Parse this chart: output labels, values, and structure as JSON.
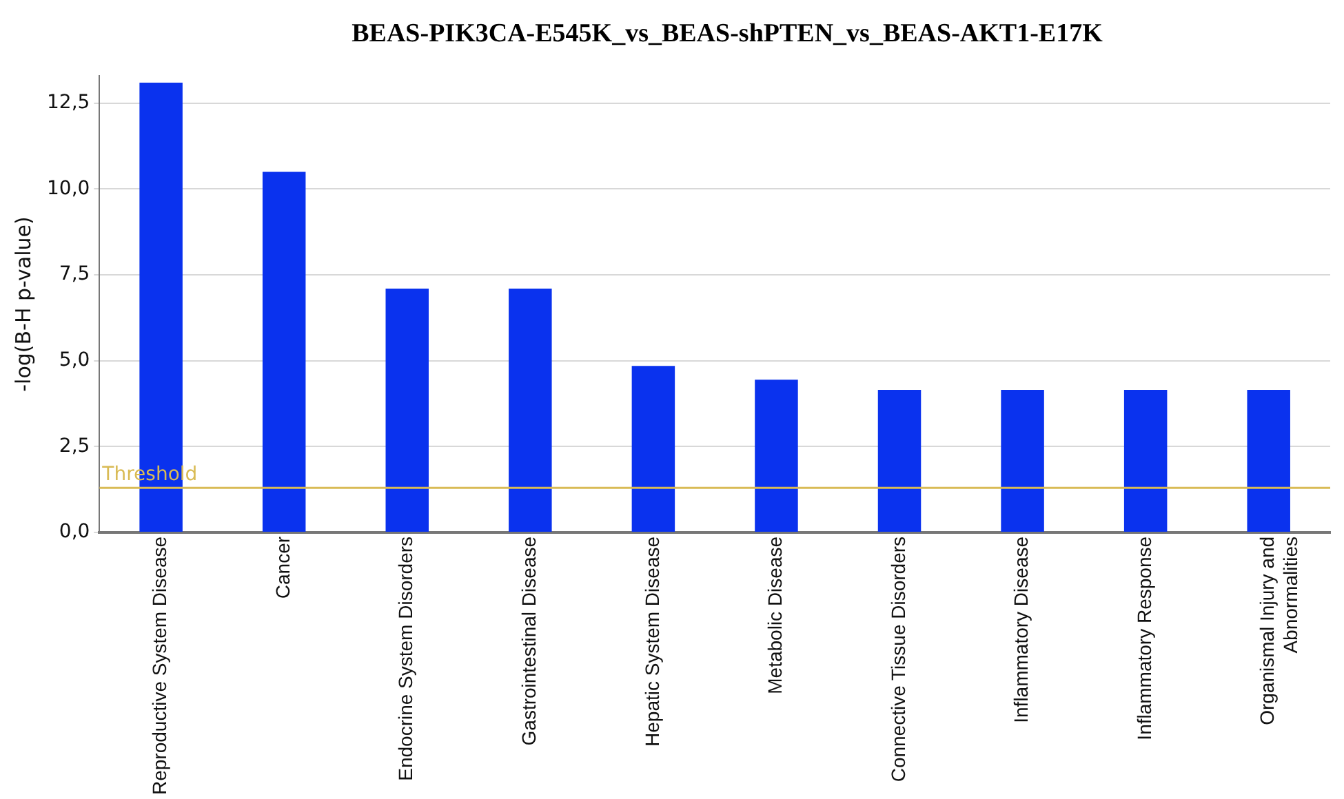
{
  "chart_data": {
    "type": "bar",
    "title": "BEAS-PIK3CA-E545K_vs_BEAS-shPTEN_vs_BEAS-AKT1-E17K",
    "ylabel": "-log(B-H p-value)",
    "categories": [
      "Reproductive System Disease",
      "Cancer",
      "Endocrine System Disorders",
      "Gastrointestinal Disease",
      "Hepatic System Disease",
      "Metabolic Disease",
      "Connective Tissue Disorders",
      "Inflammatory Disease",
      "Inflammatory Response",
      "Organismal Injury and Abnormalities"
    ],
    "values": [
      13.1,
      10.5,
      7.1,
      7.1,
      4.85,
      4.45,
      4.15,
      4.15,
      4.15,
      4.15
    ],
    "color": "#0a32ee",
    "ylim": [
      0,
      13.3
    ],
    "yticks": [
      {
        "value": 0,
        "label": "0,0"
      },
      {
        "value": 2.5,
        "label": "2,5"
      },
      {
        "value": 5,
        "label": "5,0"
      },
      {
        "value": 7.5,
        "label": "7,5"
      },
      {
        "value": 10,
        "label": "10,0"
      },
      {
        "value": 12.5,
        "label": "12,5"
      }
    ],
    "grid": "y",
    "legend": false,
    "ref_lines": [
      {
        "axis": "y",
        "value": 1.3,
        "label": "Threshold",
        "color": "#d9bb55"
      }
    ]
  }
}
